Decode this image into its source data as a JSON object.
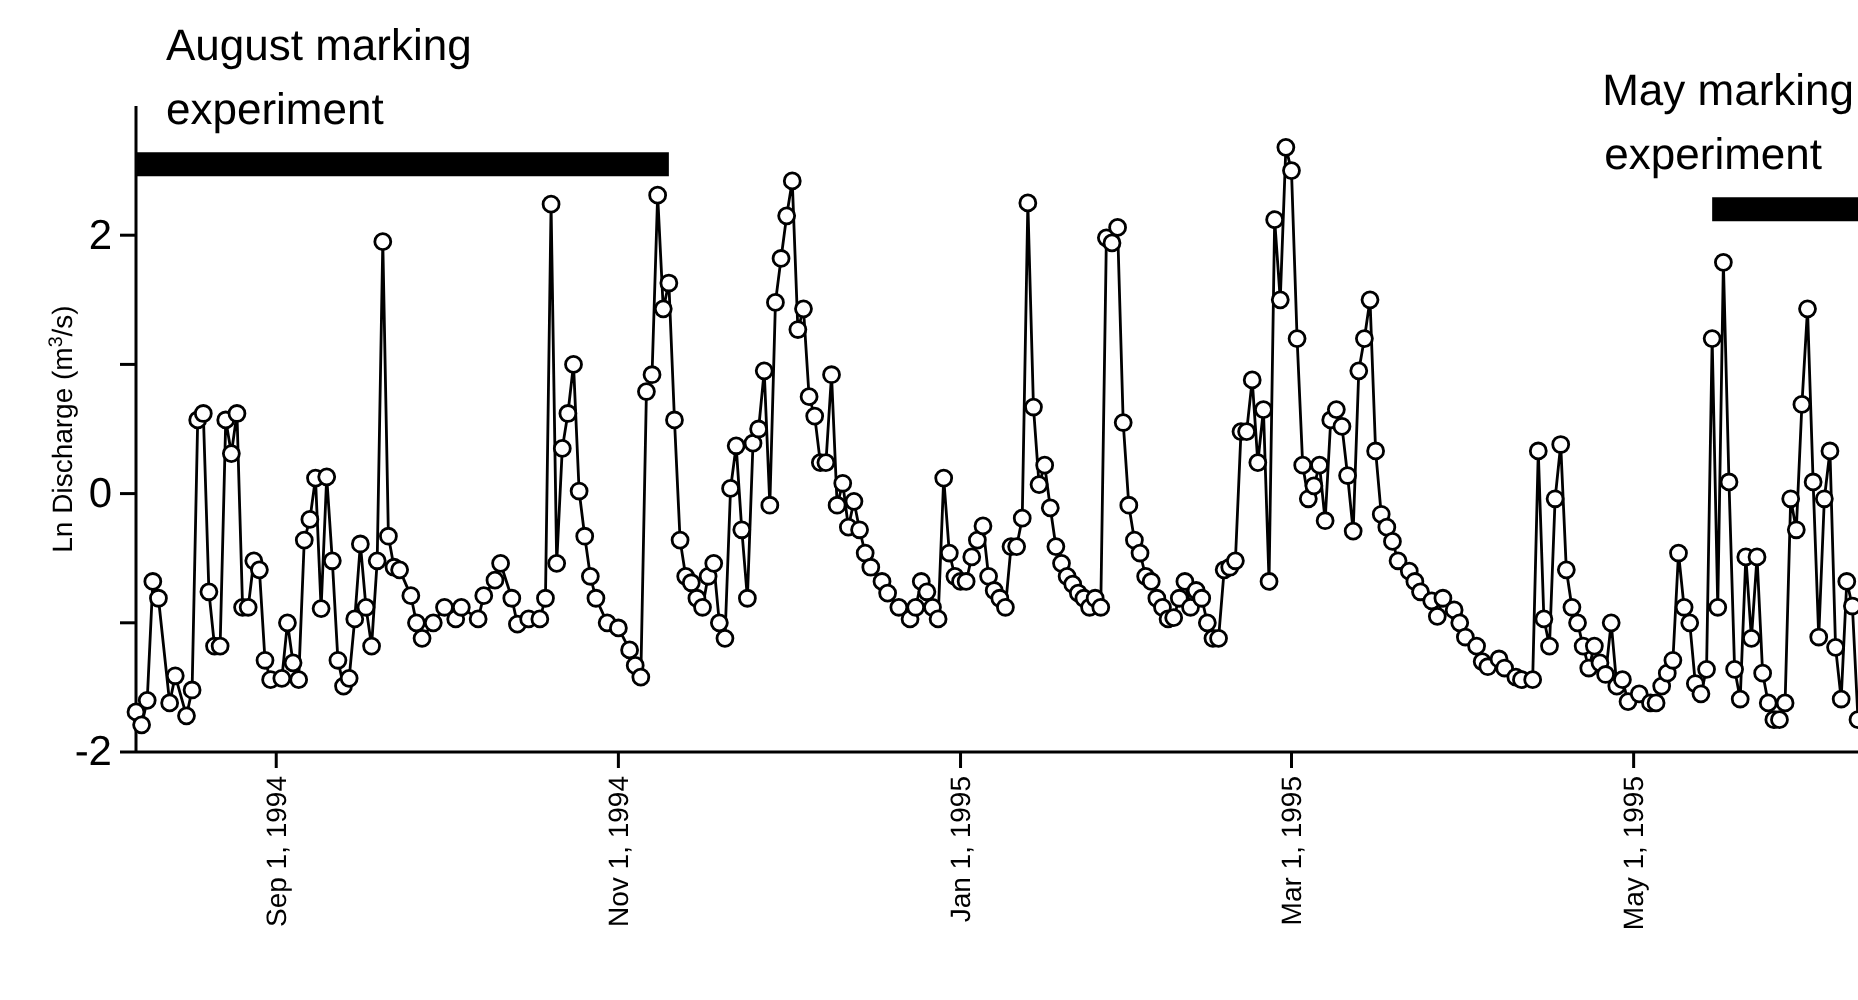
{
  "chart_data": {
    "type": "line",
    "ylabel": "Ln Discharge (m$^{3}$/s)",
    "line_style": "solid",
    "xlim": [
      "1994-08-07",
      "1995-06-10"
    ],
    "xticks": [
      {
        "value": "1994-09-01",
        "label": "Sep 1, 1994"
      },
      {
        "value": "1994-11-01",
        "label": "Nov 1, 1994"
      },
      {
        "value": "1995-01-01",
        "label": "Jan 1, 1995"
      },
      {
        "value": "1995-03-01",
        "label": "Mar 1, 1995"
      },
      {
        "value": "1995-05-01",
        "label": "May 1, 1995"
      }
    ],
    "ylim": [
      -2,
      3
    ],
    "yticks": [
      -2,
      {
        "value": -1,
        "label": null
      },
      0,
      {
        "value": 1,
        "label": null
      },
      2
    ],
    "series": [
      {
        "color": "#000000",
        "marker": "circle",
        "x": [
          "1994-08-07",
          "1994-08-08",
          "1994-08-09",
          "1994-08-10",
          "1994-08-11",
          "1994-08-13",
          "1994-08-14",
          "1994-08-16",
          "1994-08-17",
          "1994-08-18",
          "1994-08-19",
          "1994-08-20",
          "1994-08-21",
          "1994-08-22",
          "1994-08-23",
          "1994-08-24",
          "1994-08-25",
          "1994-08-26",
          "1994-08-27",
          "1994-08-28",
          "1994-08-29",
          "1994-08-30",
          "1994-08-31",
          "1994-09-02",
          "1994-09-03",
          "1994-09-04",
          "1994-09-05",
          "1994-09-06",
          "1994-09-07",
          "1994-09-08",
          "1994-09-09",
          "1994-09-10",
          "1994-09-11",
          "1994-09-12",
          "1994-09-13",
          "1994-09-14",
          "1994-09-15",
          "1994-09-16",
          "1994-09-17",
          "1994-09-18",
          "1994-09-19",
          "1994-09-20",
          "1994-09-21",
          "1994-09-22",
          "1994-09-23",
          "1994-09-25",
          "1994-09-26",
          "1994-09-27",
          "1994-09-29",
          "1994-10-01",
          "1994-10-03",
          "1994-10-04",
          "1994-10-07",
          "1994-10-08",
          "1994-10-10",
          "1994-10-11",
          "1994-10-13",
          "1994-10-14",
          "1994-10-16",
          "1994-10-18",
          "1994-10-19",
          "1994-10-20",
          "1994-10-21",
          "1994-10-22",
          "1994-10-23",
          "1994-10-24",
          "1994-10-25",
          "1994-10-26",
          "1994-10-27",
          "1994-10-28",
          "1994-10-30",
          "1994-11-01",
          "1994-11-03",
          "1994-11-04",
          "1994-11-05",
          "1994-11-06",
          "1994-11-07",
          "1994-11-08",
          "1994-11-09",
          "1994-11-10",
          "1994-11-11",
          "1994-11-12",
          "1994-11-13",
          "1994-11-14",
          "1994-11-15",
          "1994-11-16",
          "1994-11-17",
          "1994-11-18",
          "1994-11-19",
          "1994-11-20",
          "1994-11-21",
          "1994-11-22",
          "1994-11-23",
          "1994-11-24",
          "1994-11-25",
          "1994-11-26",
          "1994-11-27",
          "1994-11-28",
          "1994-11-29",
          "1994-11-30",
          "1994-12-01",
          "1994-12-02",
          "1994-12-03",
          "1994-12-04",
          "1994-12-05",
          "1994-12-06",
          "1994-12-07",
          "1994-12-08",
          "1994-12-09",
          "1994-12-10",
          "1994-12-11",
          "1994-12-12",
          "1994-12-13",
          "1994-12-14",
          "1994-12-15",
          "1994-12-16",
          "1994-12-18",
          "1994-12-19",
          "1994-12-21",
          "1994-12-23",
          "1994-12-24",
          "1994-12-25",
          "1994-12-26",
          "1994-12-27",
          "1994-12-28",
          "1994-12-29",
          "1994-12-30",
          "1994-12-31",
          "1995-01-01",
          "1995-01-02",
          "1995-01-03",
          "1995-01-04",
          "1995-01-05",
          "1995-01-06",
          "1995-01-07",
          "1995-01-08",
          "1995-01-09",
          "1995-01-10",
          "1995-01-11",
          "1995-01-12",
          "1995-01-13",
          "1995-01-14",
          "1995-01-15",
          "1995-01-16",
          "1995-01-17",
          "1995-01-18",
          "1995-01-19",
          "1995-01-20",
          "1995-01-21",
          "1995-01-22",
          "1995-01-23",
          "1995-01-24",
          "1995-01-25",
          "1995-01-26",
          "1995-01-27",
          "1995-01-28",
          "1995-01-29",
          "1995-01-30",
          "1995-01-31",
          "1995-02-01",
          "1995-02-02",
          "1995-02-03",
          "1995-02-04",
          "1995-02-05",
          "1995-02-06",
          "1995-02-07",
          "1995-02-08",
          "1995-02-09",
          "1995-02-10",
          "1995-02-11",
          "1995-02-12",
          "1995-02-13",
          "1995-02-14",
          "1995-02-15",
          "1995-02-16",
          "1995-02-17",
          "1995-02-18",
          "1995-02-19",
          "1995-02-20",
          "1995-02-21",
          "1995-02-22",
          "1995-02-23",
          "1995-02-24",
          "1995-02-25",
          "1995-02-26",
          "1995-02-27",
          "1995-02-28",
          "1995-03-01",
          "1995-03-02",
          "1995-03-03",
          "1995-03-04",
          "1995-03-05",
          "1995-03-06",
          "1995-03-07",
          "1995-03-08",
          "1995-03-09",
          "1995-03-10",
          "1995-03-11",
          "1995-03-12",
          "1995-03-13",
          "1995-03-14",
          "1995-03-15",
          "1995-03-16",
          "1995-03-17",
          "1995-03-18",
          "1995-03-19",
          "1995-03-20",
          "1995-03-22",
          "1995-03-23",
          "1995-03-24",
          "1995-03-26",
          "1995-03-27",
          "1995-03-28",
          "1995-03-30",
          "1995-03-31",
          "1995-04-01",
          "1995-04-03",
          "1995-04-04",
          "1995-04-05",
          "1995-04-07",
          "1995-04-08",
          "1995-04-10",
          "1995-04-11",
          "1995-04-13",
          "1995-04-14",
          "1995-04-15",
          "1995-04-16",
          "1995-04-17",
          "1995-04-18",
          "1995-04-19",
          "1995-04-20",
          "1995-04-21",
          "1995-04-22",
          "1995-04-23",
          "1995-04-24",
          "1995-04-25",
          "1995-04-26",
          "1995-04-27",
          "1995-04-28",
          "1995-04-29",
          "1995-04-30",
          "1995-05-02",
          "1995-05-04",
          "1995-05-05",
          "1995-05-06",
          "1995-05-07",
          "1995-05-08",
          "1995-05-09",
          "1995-05-10",
          "1995-05-11",
          "1995-05-12",
          "1995-05-13",
          "1995-05-14",
          "1995-05-15",
          "1995-05-16",
          "1995-05-17",
          "1995-05-18",
          "1995-05-19",
          "1995-05-20",
          "1995-05-21",
          "1995-05-22",
          "1995-05-23",
          "1995-05-24",
          "1995-05-25",
          "1995-05-26",
          "1995-05-27",
          "1995-05-28",
          "1995-05-29",
          "1995-05-30",
          "1995-05-31",
          "1995-06-01",
          "1995-06-02",
          "1995-06-03",
          "1995-06-04",
          "1995-06-05",
          "1995-06-06",
          "1995-06-07",
          "1995-06-08",
          "1995-06-09",
          "1995-06-10"
        ],
        "values": [
          -1.69,
          -1.79,
          -1.6,
          -0.68,
          -0.81,
          -1.62,
          -1.41,
          -1.72,
          -1.52,
          0.57,
          0.62,
          -0.76,
          -1.18,
          -1.18,
          0.57,
          0.31,
          0.62,
          -0.88,
          -0.88,
          -0.52,
          -0.59,
          -1.29,
          -1.44,
          -1.43,
          -1.0,
          -1.31,
          -1.44,
          -0.36,
          -0.2,
          0.12,
          -0.89,
          0.13,
          -0.52,
          -1.29,
          -1.49,
          -1.43,
          -0.97,
          -0.39,
          -0.88,
          -1.18,
          -0.52,
          1.95,
          -0.33,
          -0.57,
          -0.59,
          -0.79,
          -1.0,
          -1.12,
          -1.0,
          -0.88,
          -0.97,
          -0.88,
          -0.97,
          -0.79,
          -0.67,
          -0.54,
          -0.81,
          -1.01,
          -0.97,
          -0.97,
          -0.81,
          2.24,
          -0.54,
          0.35,
          0.62,
          1.0,
          0.02,
          -0.33,
          -0.64,
          -0.81,
          -1.0,
          -1.04,
          -1.21,
          -1.33,
          -1.42,
          0.79,
          0.92,
          2.31,
          1.43,
          1.63,
          0.57,
          -0.36,
          -0.64,
          -0.69,
          -0.81,
          -0.88,
          -0.64,
          -0.54,
          -1.0,
          -1.12,
          0.04,
          0.37,
          -0.28,
          -0.81,
          0.39,
          0.5,
          0.95,
          -0.09,
          1.48,
          1.82,
          2.15,
          2.42,
          1.27,
          1.43,
          0.75,
          0.6,
          0.24,
          0.24,
          0.92,
          -0.09,
          0.08,
          -0.26,
          -0.06,
          -0.28,
          -0.46,
          -0.57,
          -0.68,
          -0.77,
          -0.88,
          -0.97,
          -0.88,
          -0.68,
          -0.76,
          -0.88,
          -0.97,
          0.12,
          -0.46,
          -0.64,
          -0.68,
          -0.68,
          -0.49,
          -0.36,
          -0.25,
          -0.64,
          -0.75,
          -0.81,
          -0.88,
          -0.41,
          -0.41,
          -0.19,
          2.25,
          0.67,
          0.07,
          0.22,
          -0.11,
          -0.41,
          -0.54,
          -0.64,
          -0.7,
          -0.77,
          -0.81,
          -0.88,
          -0.81,
          -0.88,
          1.98,
          1.94,
          2.06,
          0.55,
          -0.09,
          -0.36,
          -0.46,
          -0.64,
          -0.68,
          -0.81,
          -0.88,
          -0.97,
          -0.96,
          -0.81,
          -0.68,
          -0.88,
          -0.75,
          -0.81,
          -1.0,
          -1.12,
          -1.12,
          -0.59,
          -0.57,
          -0.52,
          0.48,
          0.48,
          0.88,
          0.24,
          0.65,
          -0.68,
          2.12,
          1.5,
          2.68,
          2.5,
          1.2,
          0.22,
          -0.04,
          0.06,
          0.22,
          -0.21,
          0.57,
          0.65,
          0.52,
          0.14,
          -0.29,
          0.95,
          1.2,
          1.5,
          0.33,
          -0.16,
          -0.26,
          -0.37,
          -0.52,
          -0.6,
          -0.68,
          -0.76,
          -0.83,
          -0.95,
          -0.81,
          -0.9,
          -1.0,
          -1.11,
          -1.18,
          -1.3,
          -1.34,
          -1.28,
          -1.35,
          -1.42,
          -1.44,
          -1.44,
          0.33,
          -0.97,
          -1.18,
          -0.04,
          0.38,
          -0.59,
          -0.88,
          -1.0,
          -1.18,
          -1.35,
          -1.18,
          -1.31,
          -1.4,
          -1.0,
          -1.49,
          -1.44,
          -1.61,
          -1.55,
          -1.62,
          -1.62,
          -1.49,
          -1.39,
          -1.29,
          -0.46,
          -0.88,
          -1.0,
          -1.47,
          -1.55,
          -1.36,
          1.2,
          -0.88,
          1.79,
          0.09,
          -1.36,
          -1.59,
          -0.49,
          -1.12,
          -0.49,
          -1.39,
          -1.62,
          -1.75,
          -1.75,
          -1.62,
          -0.04,
          -0.28,
          0.69,
          1.43,
          0.09,
          -1.11,
          -0.04,
          0.33,
          -1.19,
          -1.59,
          -0.68,
          -0.87,
          -1.75
        ]
      },
      {
        "name": "August marking experiment",
        "color": "#000000",
        "marker": "none",
        "x": [
          "1994-08-07",
          "1994-11-10"
        ],
        "values": [
          2.55,
          2.55
        ]
      },
      {
        "name": "May marking experiment",
        "color": "#000000",
        "marker": "none",
        "x": [
          "1995-05-15",
          "1995-06-10"
        ],
        "values": [
          2.2,
          2.2
        ]
      }
    ]
  }
}
